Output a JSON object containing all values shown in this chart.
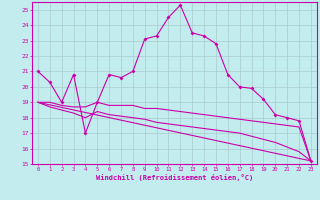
{
  "xlabel": "Windchill (Refroidissement éolien,°C)",
  "bg_color": "#c2ecee",
  "grid_color": "#aacccc",
  "line_color": "#cc00aa",
  "xlim": [
    -0.5,
    23.5
  ],
  "ylim": [
    15,
    25.5
  ],
  "xticks": [
    0,
    1,
    2,
    3,
    4,
    5,
    6,
    7,
    8,
    9,
    10,
    11,
    12,
    13,
    14,
    15,
    16,
    17,
    18,
    19,
    20,
    21,
    22,
    23
  ],
  "yticks": [
    15,
    16,
    17,
    18,
    19,
    20,
    21,
    22,
    23,
    24,
    25
  ],
  "series1_x": [
    0,
    1,
    2,
    3,
    4,
    5,
    6,
    7,
    8,
    9,
    10,
    11,
    12,
    13,
    14,
    15,
    16,
    17,
    18,
    19,
    20,
    21,
    22,
    23
  ],
  "series1_y": [
    21.0,
    20.3,
    19.0,
    20.8,
    17.0,
    19.0,
    20.8,
    20.6,
    21.0,
    23.1,
    23.3,
    24.5,
    25.3,
    23.5,
    23.3,
    22.8,
    20.8,
    20.0,
    19.9,
    19.2,
    18.2,
    18.0,
    17.8,
    15.2
  ],
  "series2_x": [
    0,
    1,
    2,
    3,
    4,
    5,
    6,
    7,
    8,
    9,
    10,
    11,
    12,
    13,
    14,
    15,
    16,
    17,
    18,
    19,
    20,
    21,
    22,
    23
  ],
  "series2_y": [
    19.0,
    19.0,
    18.8,
    18.7,
    18.7,
    19.0,
    18.8,
    18.8,
    18.8,
    18.6,
    18.6,
    18.5,
    18.4,
    18.3,
    18.2,
    18.1,
    18.0,
    17.9,
    17.8,
    17.7,
    17.6,
    17.5,
    17.4,
    15.2
  ],
  "series3_x": [
    0,
    1,
    2,
    3,
    4,
    5,
    6,
    7,
    8,
    9,
    10,
    11,
    12,
    13,
    14,
    15,
    16,
    17,
    18,
    19,
    20,
    21,
    22,
    23
  ],
  "series3_y": [
    19.0,
    18.7,
    18.5,
    18.3,
    18.0,
    18.4,
    18.2,
    18.1,
    18.0,
    17.9,
    17.7,
    17.6,
    17.5,
    17.4,
    17.3,
    17.2,
    17.1,
    17.0,
    16.8,
    16.6,
    16.4,
    16.1,
    15.8,
    15.2
  ],
  "series4_x": [
    0,
    23
  ],
  "series4_y": [
    19.0,
    15.2
  ]
}
